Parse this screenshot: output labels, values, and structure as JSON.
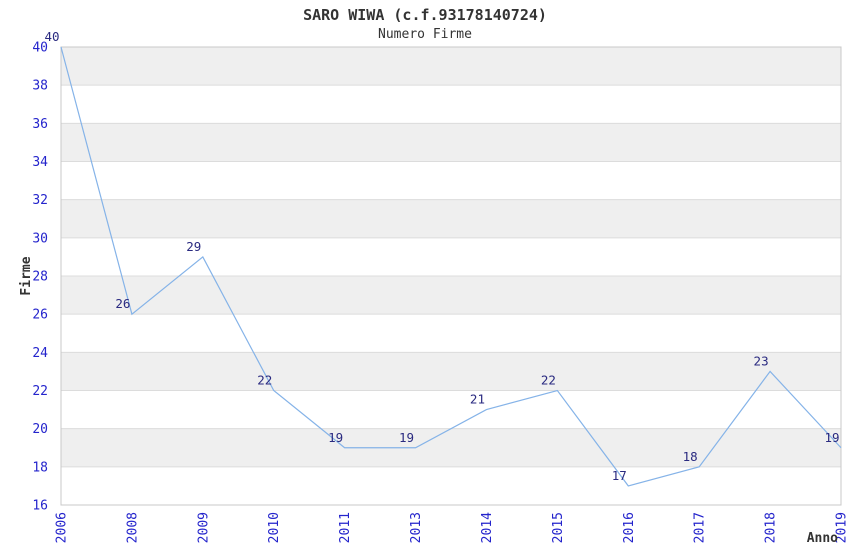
{
  "page": {
    "title": "SARO WIWA (c.f.93178140724)",
    "subtitle": "Numero Firme"
  },
  "chart_data": {
    "type": "line",
    "title": "SARO WIWA (c.f.93178140724)",
    "subtitle": "Numero Firme",
    "xlabel": "Anno",
    "ylabel": "Firme",
    "categories": [
      "2006",
      "2008",
      "2009",
      "2010",
      "2011",
      "2013",
      "2014",
      "2015",
      "2016",
      "2017",
      "2018",
      "2019"
    ],
    "values": [
      40,
      26,
      29,
      22,
      19,
      19,
      21,
      22,
      17,
      18,
      23,
      19
    ],
    "ylim": [
      16,
      40
    ],
    "ytick_step": 2,
    "yticks": [
      16,
      18,
      20,
      22,
      24,
      26,
      28,
      30,
      32,
      34,
      36,
      38,
      40
    ],
    "grid": "horizontal-bands-alternating",
    "legend": "none",
    "data_labels_shown": true,
    "x_tick_rotation_deg": 90,
    "colors": {
      "line": "#85b3e8",
      "tick_label": "#2424cc",
      "data_label": "#2a2a80",
      "band_fill": "#efefef",
      "gridline": "#dcdcdc",
      "plot_border": "#c8c8c8",
      "title_text": "#333333",
      "axis_title_text": "#333333",
      "background": "#ffffff",
      "plot_background": "#ffffff"
    }
  }
}
